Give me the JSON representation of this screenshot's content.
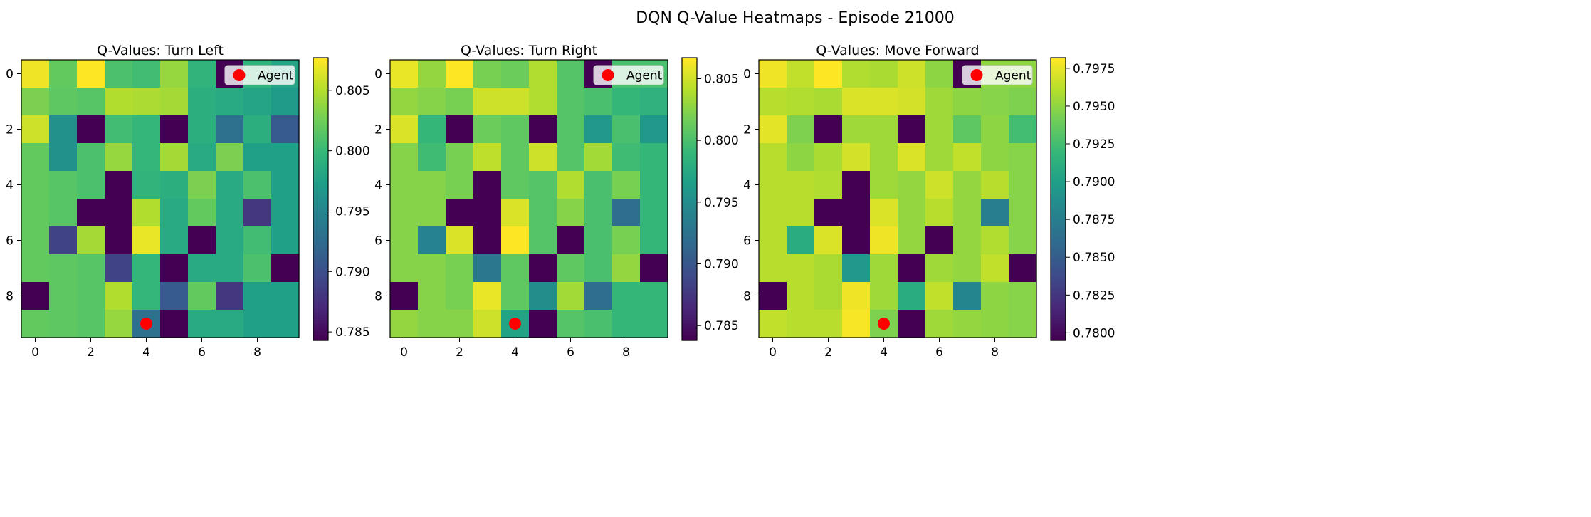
{
  "figure": {
    "title": "DQN Q-Value Heatmaps - Episode 21000"
  },
  "chart_data": [
    {
      "type": "heatmap",
      "title": "Q-Values: Turn Left",
      "colormap": "viridis",
      "xticks": [
        "0",
        "2",
        "4",
        "6",
        "8"
      ],
      "yticks": [
        "0",
        "2",
        "4",
        "6",
        "8"
      ],
      "clim": [
        0.7843,
        0.8077
      ],
      "colorbar_ticks": [
        "0.785",
        "0.790",
        "0.795",
        "0.800",
        "0.805"
      ],
      "colorbar_tick_values": [
        0.785,
        0.79,
        0.795,
        0.8,
        0.805
      ],
      "legend": {
        "label": "Agent",
        "placement": "upper right",
        "marker_color": "#ff0000"
      },
      "agent": {
        "row": 9,
        "col": 4
      },
      "values": [
        [
          0.8072,
          0.802,
          0.8077,
          0.801,
          0.8005,
          0.804,
          0.7995,
          0.7843,
          0.7995,
          0.798
        ],
        [
          0.803,
          0.8018,
          0.8015,
          0.805,
          0.8048,
          0.8045,
          0.799,
          0.7985,
          0.798,
          0.797
        ],
        [
          0.806,
          0.796,
          0.7843,
          0.8005,
          0.7998,
          0.7843,
          0.799,
          0.793,
          0.799,
          0.791
        ],
        [
          0.802,
          0.796,
          0.801,
          0.804,
          0.7998,
          0.8045,
          0.7985,
          0.803,
          0.7975,
          0.7975
        ],
        [
          0.802,
          0.8015,
          0.801,
          0.7843,
          0.7995,
          0.799,
          0.803,
          0.7985,
          0.801,
          0.7975
        ],
        [
          0.802,
          0.8015,
          0.7843,
          0.7843,
          0.805,
          0.7985,
          0.802,
          0.7985,
          0.788,
          0.7975
        ],
        [
          0.802,
          0.789,
          0.8045,
          0.7843,
          0.807,
          0.7985,
          0.7843,
          0.7985,
          0.8005,
          0.7975
        ],
        [
          0.802,
          0.8018,
          0.8015,
          0.789,
          0.7998,
          0.7843,
          0.7985,
          0.7985,
          0.801,
          0.7843
        ],
        [
          0.7843,
          0.8018,
          0.8015,
          0.805,
          0.7998,
          0.791,
          0.802,
          0.788,
          0.7975,
          0.7975
        ],
        [
          0.802,
          0.8018,
          0.8015,
          0.804,
          0.793,
          0.7843,
          0.7985,
          0.7985,
          0.7975,
          0.7975
        ]
      ]
    },
    {
      "type": "heatmap",
      "title": "Q-Values: Turn Right",
      "colormap": "viridis",
      "xticks": [
        "0",
        "2",
        "4",
        "6",
        "8"
      ],
      "yticks": [
        "0",
        "2",
        "4",
        "6",
        "8"
      ],
      "clim": [
        0.7838,
        0.8067
      ],
      "colorbar_ticks": [
        "0.785",
        "0.790",
        "0.795",
        "0.800",
        "0.805"
      ],
      "colorbar_tick_values": [
        0.785,
        0.79,
        0.795,
        0.8,
        0.805
      ],
      "legend": {
        "label": "Agent",
        "placement": "upper right",
        "marker_color": "#ff0000"
      },
      "agent": {
        "row": 9,
        "col": 4
      },
      "values": [
        [
          0.806,
          0.803,
          0.8067,
          0.802,
          0.8015,
          0.804,
          0.8005,
          0.7838,
          0.8,
          0.8
        ],
        [
          0.803,
          0.8025,
          0.802,
          0.805,
          0.805,
          0.804,
          0.8005,
          0.8,
          0.799,
          0.7985
        ],
        [
          0.8055,
          0.799,
          0.7838,
          0.8015,
          0.801,
          0.7838,
          0.8005,
          0.796,
          0.8,
          0.796
        ],
        [
          0.8025,
          0.7995,
          0.802,
          0.8045,
          0.801,
          0.805,
          0.8005,
          0.8035,
          0.7995,
          0.799
        ],
        [
          0.8025,
          0.8025,
          0.802,
          0.7838,
          0.801,
          0.8005,
          0.804,
          0.8,
          0.802,
          0.799
        ],
        [
          0.8025,
          0.8025,
          0.7838,
          0.7838,
          0.8055,
          0.8005,
          0.8025,
          0.8,
          0.792,
          0.799
        ],
        [
          0.8025,
          0.794,
          0.8055,
          0.7838,
          0.8067,
          0.8005,
          0.7838,
          0.8,
          0.802,
          0.799
        ],
        [
          0.8025,
          0.8025,
          0.802,
          0.793,
          0.801,
          0.7838,
          0.801,
          0.8,
          0.803,
          0.7838
        ],
        [
          0.7838,
          0.8025,
          0.802,
          0.806,
          0.801,
          0.795,
          0.8035,
          0.792,
          0.799,
          0.799
        ],
        [
          0.803,
          0.8025,
          0.8025,
          0.805,
          0.797,
          0.7838,
          0.8005,
          0.8,
          0.799,
          0.799
        ]
      ]
    },
    {
      "type": "heatmap",
      "title": "Q-Values: Move Forward",
      "colormap": "viridis",
      "xticks": [
        "0",
        "2",
        "4",
        "6",
        "8"
      ],
      "yticks": [
        "0",
        "2",
        "4",
        "6",
        "8"
      ],
      "clim": [
        0.7795,
        0.7982
      ],
      "colorbar_ticks": [
        "0.7800",
        "0.7825",
        "0.7850",
        "0.7875",
        "0.7900",
        "0.7925",
        "0.7950",
        "0.7975"
      ],
      "colorbar_tick_values": [
        0.78,
        0.7825,
        0.785,
        0.7875,
        0.79,
        0.7925,
        0.795,
        0.7975
      ],
      "legend": {
        "label": "Agent",
        "placement": "upper right",
        "marker_color": "#ff0000"
      },
      "agent": {
        "row": 9,
        "col": 4
      },
      "values": [
        [
          0.7978,
          0.7965,
          0.7982,
          0.796,
          0.7958,
          0.7968,
          0.795,
          0.7795,
          0.795,
          0.795
        ],
        [
          0.7962,
          0.796,
          0.7958,
          0.7972,
          0.7972,
          0.797,
          0.7955,
          0.795,
          0.7948,
          0.7945
        ],
        [
          0.7975,
          0.7945,
          0.7795,
          0.7955,
          0.7955,
          0.7795,
          0.7955,
          0.7935,
          0.795,
          0.7925
        ],
        [
          0.7962,
          0.795,
          0.7958,
          0.797,
          0.7955,
          0.7972,
          0.7955,
          0.7965,
          0.795,
          0.7948
        ],
        [
          0.7962,
          0.7962,
          0.796,
          0.7795,
          0.7955,
          0.7952,
          0.7968,
          0.7952,
          0.7962,
          0.7948
        ],
        [
          0.7962,
          0.7962,
          0.7795,
          0.7795,
          0.7972,
          0.7952,
          0.7962,
          0.7952,
          0.7875,
          0.7948
        ],
        [
          0.7962,
          0.791,
          0.7972,
          0.7795,
          0.7978,
          0.7952,
          0.7795,
          0.7952,
          0.796,
          0.7948
        ],
        [
          0.7962,
          0.7962,
          0.7958,
          0.7895,
          0.7955,
          0.7795,
          0.7955,
          0.7952,
          0.7965,
          0.7795
        ],
        [
          0.7795,
          0.7962,
          0.7958,
          0.7978,
          0.7955,
          0.791,
          0.7965,
          0.788,
          0.795,
          0.7948
        ],
        [
          0.7965,
          0.7962,
          0.7962,
          0.798,
          0.7945,
          0.7795,
          0.7955,
          0.7952,
          0.795,
          0.7948
        ]
      ]
    }
  ]
}
